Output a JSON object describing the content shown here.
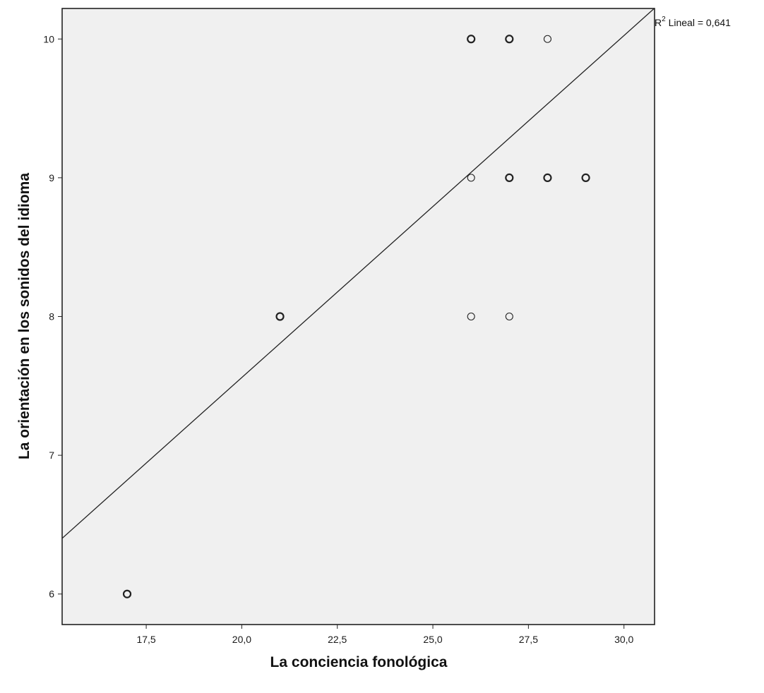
{
  "chart_data": {
    "type": "scatter",
    "xlabel": "La conciencia fonológica",
    "ylabel": "La orientación en los sonidos del idioma",
    "xlim": [
      15.3,
      30.8
    ],
    "ylim": [
      5.78,
      10.22
    ],
    "x_ticks": [
      17.5,
      20.0,
      22.5,
      25.0,
      27.5,
      30.0
    ],
    "x_tick_labels": [
      "17,5",
      "20,0",
      "22,5",
      "25,0",
      "27,5",
      "30,0"
    ],
    "y_ticks": [
      6,
      7,
      8,
      9,
      10
    ],
    "y_tick_labels": [
      "6",
      "7",
      "8",
      "9",
      "10"
    ],
    "points": [
      {
        "x": 17,
        "y": 6,
        "overlap": true
      },
      {
        "x": 21,
        "y": 8,
        "overlap": true
      },
      {
        "x": 26,
        "y": 8,
        "overlap": false
      },
      {
        "x": 27,
        "y": 8,
        "overlap": false
      },
      {
        "x": 26,
        "y": 9,
        "overlap": false
      },
      {
        "x": 27,
        "y": 9,
        "overlap": true
      },
      {
        "x": 28,
        "y": 9,
        "overlap": true
      },
      {
        "x": 29,
        "y": 9,
        "overlap": true
      },
      {
        "x": 26,
        "y": 10,
        "overlap": true
      },
      {
        "x": 27,
        "y": 10,
        "overlap": true
      },
      {
        "x": 28,
        "y": 10,
        "overlap": false
      }
    ],
    "fit_line": {
      "type": "linear",
      "intercept": 2.63,
      "slope": 0.2465
    },
    "r2_label": {
      "prefix": "R",
      "sup": "2",
      "text": " Lineal = 0,641"
    },
    "grid": false,
    "colors": {
      "plot_background": "#f0f0f0",
      "marker": "#222222",
      "line": "#222222",
      "frame": "#222222"
    }
  }
}
